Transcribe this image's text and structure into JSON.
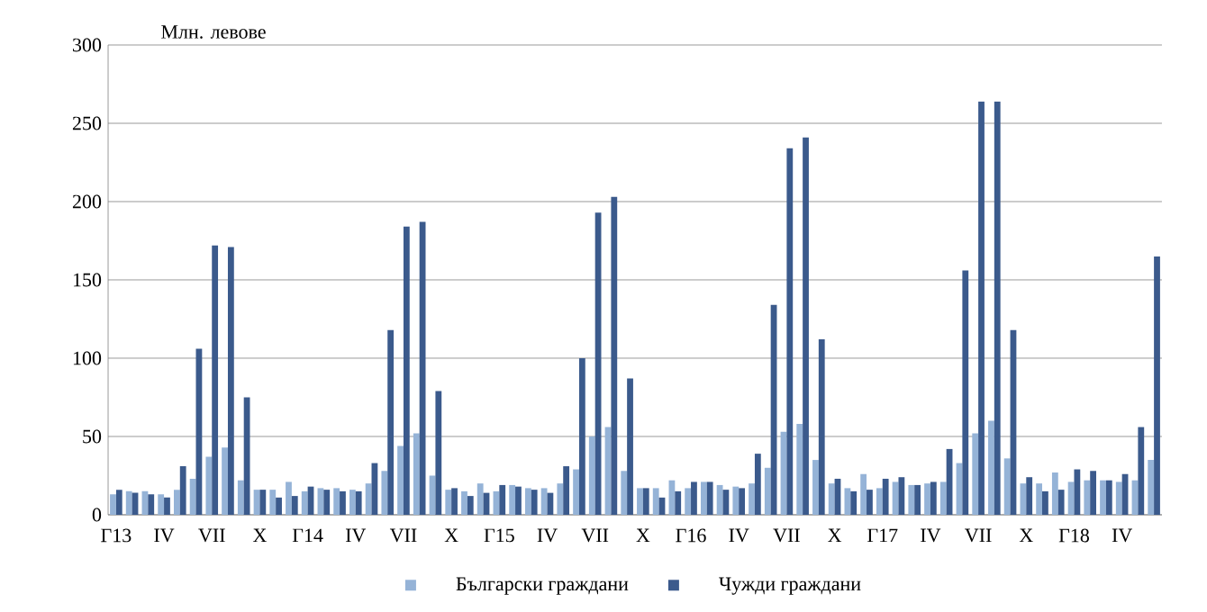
{
  "chart_data": {
    "type": "bar",
    "ylabel": "Млн. левове",
    "categories": [
      "Г13",
      null,
      null,
      "IV",
      null,
      null,
      "VII",
      null,
      null,
      "X",
      null,
      null,
      "Г14",
      null,
      null,
      "IV",
      null,
      null,
      "VII",
      null,
      null,
      "X",
      null,
      null,
      "Г15",
      null,
      null,
      "IV",
      null,
      null,
      "VII",
      null,
      null,
      "X",
      null,
      null,
      "Г16",
      null,
      null,
      "IV",
      null,
      null,
      "VII",
      null,
      null,
      "X",
      null,
      null,
      "Г17",
      null,
      null,
      "IV",
      null,
      null,
      "VII",
      null,
      null,
      "X",
      null,
      null,
      "Г18",
      null,
      null,
      "IV",
      null,
      null
    ],
    "series": [
      {
        "name": "Български граждани",
        "color": "#95b3d7",
        "values": [
          13,
          15,
          15,
          13,
          16,
          23,
          37,
          43,
          22,
          16,
          16,
          21,
          15,
          17,
          17,
          16,
          20,
          28,
          44,
          52,
          25,
          16,
          15,
          20,
          15,
          19,
          17,
          17,
          20,
          29,
          50,
          56,
          28,
          17,
          17,
          22,
          17,
          21,
          19,
          18,
          20,
          30,
          53,
          58,
          35,
          20,
          17,
          26,
          17,
          21,
          19,
          20,
          21,
          33,
          52,
          60,
          36,
          20,
          20,
          27,
          21,
          22,
          22,
          21,
          22,
          35
        ]
      },
      {
        "name": "Чужди граждани",
        "color": "#3b5a8c",
        "values": [
          16,
          14,
          13,
          11,
          31,
          106,
          172,
          171,
          75,
          16,
          11,
          12,
          18,
          16,
          15,
          15,
          33,
          118,
          184,
          187,
          79,
          17,
          12,
          14,
          19,
          18,
          16,
          14,
          31,
          100,
          193,
          203,
          87,
          17,
          11,
          15,
          21,
          21,
          16,
          17,
          39,
          134,
          234,
          241,
          112,
          23,
          15,
          16,
          23,
          24,
          19,
          21,
          42,
          156,
          264,
          264,
          118,
          24,
          15,
          16,
          29,
          28,
          22,
          26,
          56,
          165
        ]
      }
    ],
    "ylim": [
      0,
      300
    ],
    "yticks": [
      0,
      50,
      100,
      150,
      200,
      250,
      300
    ],
    "grid": "y",
    "legend": "bottom"
  }
}
